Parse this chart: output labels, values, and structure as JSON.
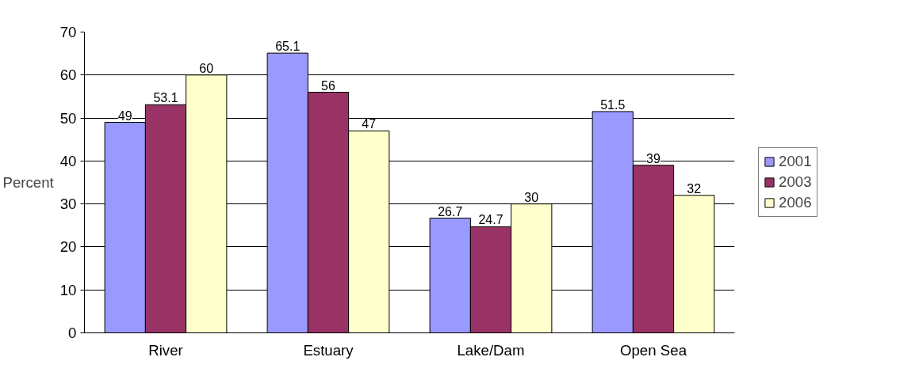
{
  "chart_data": {
    "type": "bar",
    "ylabel": "Percent",
    "categories": [
      "River",
      "Estuary",
      "Lake/Dam",
      "Open Sea"
    ],
    "series": [
      {
        "name": "2001",
        "color": "#9999ff",
        "values": [
          49,
          65.1,
          26.7,
          51.5
        ]
      },
      {
        "name": "2003",
        "color": "#993366",
        "values": [
          53.1,
          56,
          24.7,
          39
        ]
      },
      {
        "name": "2006",
        "color": "#ffffcc",
        "values": [
          60,
          47,
          30,
          32
        ]
      }
    ],
    "ylim": [
      0,
      70
    ],
    "yticks": [
      0,
      10,
      20,
      30,
      40,
      50,
      60,
      70
    ],
    "grid": "y",
    "legend": "right",
    "data_labels": true
  }
}
